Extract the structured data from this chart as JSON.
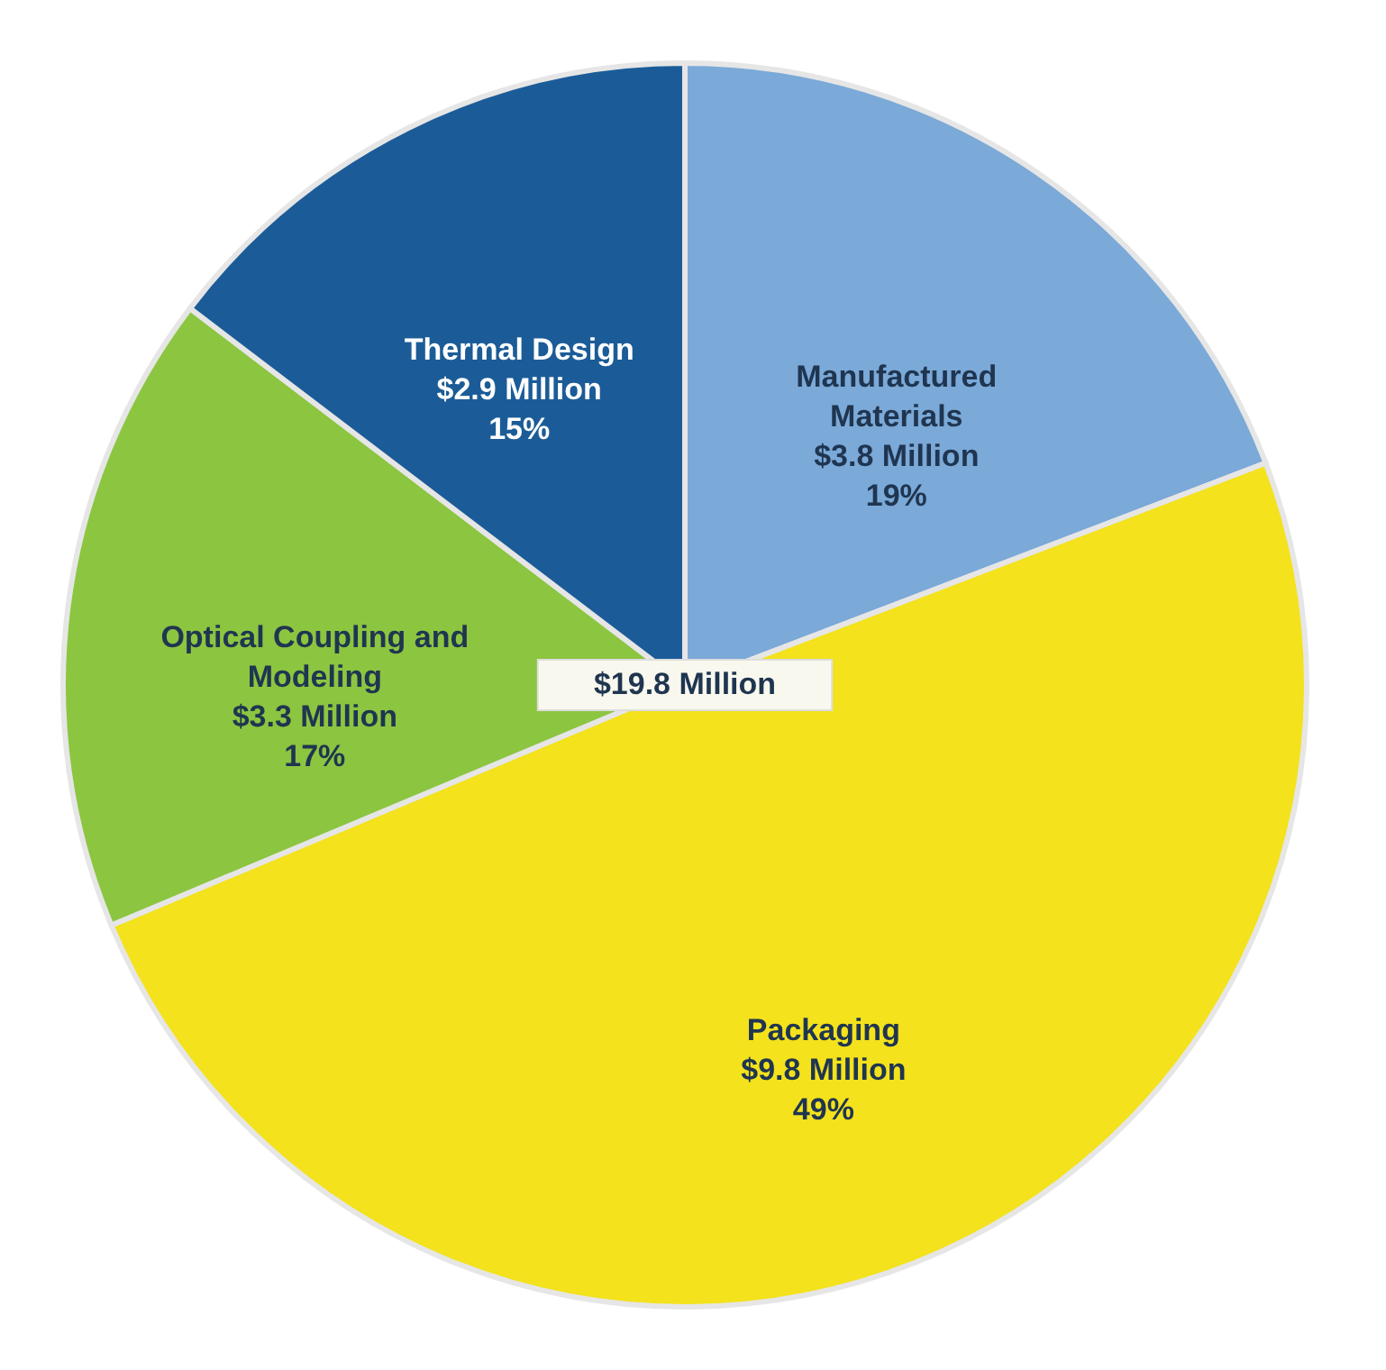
{
  "chart_data": {
    "type": "pie",
    "categories": [
      "Manufactured Materials",
      "Packaging",
      "Optical Coupling and Modeling",
      "Thermal Design"
    ],
    "values": [
      3.8,
      9.8,
      3.3,
      2.9
    ],
    "colors": [
      "#7ba9d8",
      "#f3e21c",
      "#8cc540",
      "#1b5c98"
    ],
    "value_labels": [
      "$3.8 Million\n19%",
      "$9.8 Million\n49%",
      "$3.3 Million\n17%",
      "$2.9 Million\n15%"
    ],
    "annotations": [
      "$19.8 Million"
    ],
    "legend": false
  }
}
